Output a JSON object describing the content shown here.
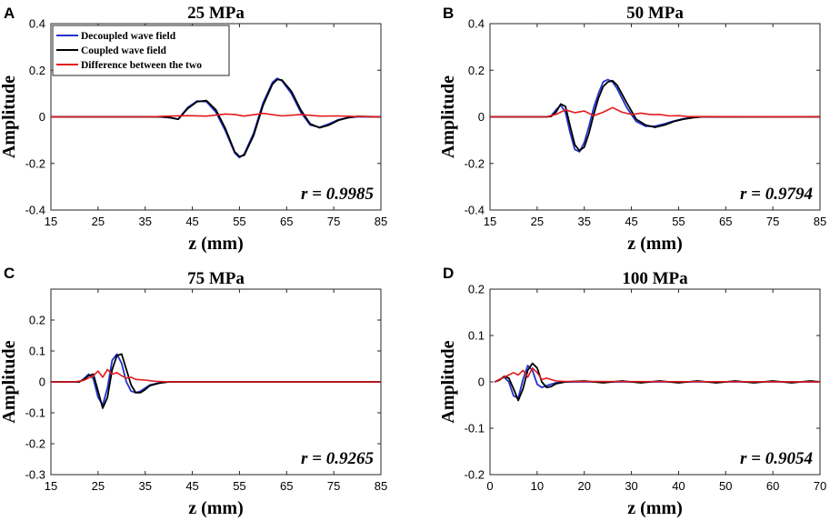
{
  "chart_data": [
    {
      "type": "line",
      "panel_label": "A",
      "title": "25 MPa",
      "xlabel": "z (mm)",
      "ylabel": "Amplitude",
      "xlim": [
        15,
        85
      ],
      "ylim": [
        -0.4,
        0.4
      ],
      "xticks": [
        15,
        25,
        35,
        45,
        55,
        65,
        75,
        85
      ],
      "yticks": [
        -0.4,
        -0.2,
        0,
        0.2,
        0.4
      ],
      "annotation": "r = 0.9985",
      "legend": {
        "position": "top-left",
        "entries": [
          "Decoupled wave field",
          "Coupled wave field",
          "Difference between the two"
        ]
      },
      "series": [
        {
          "name": "Decoupled wave field",
          "color": "#2233cc",
          "x": [
            15,
            38,
            40,
            42,
            44,
            46,
            48,
            50,
            52,
            54,
            55,
            56,
            58,
            60,
            62,
            63,
            64,
            66,
            68,
            70,
            72,
            74,
            76,
            78,
            80,
            85
          ],
          "y": [
            0,
            0,
            -0.003,
            -0.01,
            0.04,
            0.068,
            0.065,
            0.02,
            -0.06,
            -0.155,
            -0.175,
            -0.16,
            -0.07,
            0.06,
            0.148,
            0.165,
            0.155,
            0.1,
            0.02,
            -0.035,
            -0.045,
            -0.03,
            -0.012,
            -0.003,
            0,
            0
          ]
        },
        {
          "name": "Coupled wave field",
          "color": "#000000",
          "x": [
            15,
            38,
            40,
            42,
            44,
            46,
            48,
            50,
            52,
            54,
            55,
            56,
            58,
            60,
            62,
            63,
            64,
            66,
            68,
            70,
            72,
            74,
            76,
            78,
            80,
            85
          ],
          "y": [
            0,
            0,
            -0.002,
            -0.01,
            0.035,
            0.065,
            0.07,
            0.03,
            -0.05,
            -0.15,
            -0.17,
            -0.165,
            -0.08,
            0.05,
            0.14,
            0.16,
            0.158,
            0.11,
            0.03,
            -0.03,
            -0.047,
            -0.035,
            -0.015,
            -0.004,
            0.002,
            0
          ]
        },
        {
          "name": "Difference between the two",
          "color": "#e31a1c",
          "x": [
            15,
            36,
            40,
            44,
            48,
            52,
            54,
            56,
            60,
            64,
            68,
            72,
            76,
            80,
            85
          ],
          "y": [
            0,
            0,
            0.003,
            0.005,
            0.003,
            0.012,
            0.01,
            0.003,
            0.015,
            0.004,
            0.01,
            0.003,
            0.004,
            0.001,
            0
          ]
        }
      ]
    },
    {
      "type": "line",
      "panel_label": "B",
      "title": "50 MPa",
      "xlabel": "z (mm)",
      "ylabel": "Amplitude",
      "xlim": [
        15,
        85
      ],
      "ylim": [
        -0.4,
        0.4
      ],
      "xticks": [
        15,
        25,
        35,
        45,
        55,
        65,
        75,
        85
      ],
      "yticks": [
        -0.4,
        -0.2,
        0,
        0.2,
        0.4
      ],
      "annotation": "r = 0.9794",
      "series": [
        {
          "name": "Decoupled wave field",
          "color": "#2233cc",
          "x": [
            15,
            27,
            28,
            29,
            30,
            31,
            32,
            33,
            34,
            35,
            36,
            37,
            38,
            39,
            40,
            41,
            42,
            44,
            46,
            48,
            50,
            52,
            54,
            56,
            58,
            60,
            85
          ],
          "y": [
            0,
            0,
            0.005,
            0.03,
            0.05,
            0.02,
            -0.07,
            -0.14,
            -0.15,
            -0.11,
            -0.04,
            0.04,
            0.1,
            0.15,
            0.16,
            0.15,
            0.12,
            0.04,
            -0.02,
            -0.04,
            -0.04,
            -0.03,
            -0.018,
            -0.008,
            -0.002,
            0,
            0
          ]
        },
        {
          "name": "Coupled wave field",
          "color": "#000000",
          "x": [
            15,
            27,
            28,
            29,
            30,
            31,
            32,
            33,
            34,
            35,
            36,
            37,
            38,
            39,
            40,
            41,
            42,
            44,
            46,
            48,
            50,
            52,
            54,
            56,
            58,
            60,
            85
          ],
          "y": [
            0,
            0,
            0.002,
            0.02,
            0.055,
            0.045,
            -0.04,
            -0.12,
            -0.145,
            -0.13,
            -0.07,
            0.01,
            0.08,
            0.13,
            0.15,
            0.155,
            0.135,
            0.06,
            -0.01,
            -0.035,
            -0.045,
            -0.035,
            -0.02,
            -0.01,
            -0.004,
            0,
            0
          ]
        },
        {
          "name": "Difference between the two",
          "color": "#e31a1c",
          "x": [
            15,
            27,
            29,
            31,
            33,
            35,
            37,
            39,
            41,
            43,
            45,
            47,
            49,
            51,
            53,
            55,
            57,
            85
          ],
          "y": [
            0,
            0,
            0.01,
            0.03,
            0.018,
            0.025,
            0.005,
            0.02,
            0.04,
            0.02,
            0.01,
            0.016,
            0.01,
            0.01,
            0.004,
            0.005,
            0.001,
            0
          ]
        }
      ]
    },
    {
      "type": "line",
      "panel_label": "C",
      "title": "75 MPa",
      "xlabel": "z (mm)",
      "ylabel": "Amplitude",
      "xlim": [
        15,
        85
      ],
      "ylim": [
        -0.3,
        0.3
      ],
      "xticks": [
        15,
        25,
        35,
        45,
        55,
        65,
        75,
        85
      ],
      "yticks": [
        -0.3,
        -0.2,
        -0.1,
        0,
        0.1,
        0.2
      ],
      "annotation": "r = 0.9265",
      "series": [
        {
          "name": "Decoupled wave field",
          "color": "#2233cc",
          "x": [
            15,
            21,
            22,
            23,
            24,
            25,
            26,
            27,
            28,
            29,
            30,
            31,
            32,
            33,
            34,
            35,
            36,
            38,
            40,
            85
          ],
          "y": [
            0,
            0,
            0.01,
            0.025,
            0.01,
            -0.05,
            -0.075,
            -0.02,
            0.07,
            0.09,
            0.06,
            0.0,
            -0.03,
            -0.035,
            -0.03,
            -0.02,
            -0.01,
            -0.003,
            0,
            0
          ]
        },
        {
          "name": "Coupled wave field",
          "color": "#000000",
          "x": [
            15,
            21,
            22,
            23,
            24,
            25,
            26,
            27,
            28,
            29,
            30,
            31,
            32,
            33,
            34,
            35,
            36,
            38,
            40,
            85
          ],
          "y": [
            0,
            0,
            0.008,
            0.02,
            0.025,
            -0.03,
            -0.085,
            -0.05,
            0.04,
            0.085,
            0.09,
            0.04,
            -0.01,
            -0.035,
            -0.035,
            -0.025,
            -0.012,
            -0.004,
            0,
            0
          ]
        },
        {
          "name": "Difference between the two",
          "color": "#e31a1c",
          "x": [
            15,
            20,
            22,
            24,
            25,
            26,
            27,
            28,
            29,
            30,
            31,
            32,
            33,
            35,
            37,
            40,
            85
          ],
          "y": [
            0,
            0,
            0.005,
            0.02,
            0.035,
            0.015,
            0.04,
            0.025,
            0.03,
            0.02,
            0.012,
            0.015,
            0.008,
            0.006,
            0.002,
            0,
            0
          ]
        }
      ]
    },
    {
      "type": "line",
      "panel_label": "D",
      "title": "100 MPa",
      "xlabel": "z (mm)",
      "ylabel": "Amplitude",
      "xlim": [
        0,
        70
      ],
      "ylim": [
        -0.2,
        0.2
      ],
      "xticks": [
        0,
        10,
        20,
        30,
        40,
        50,
        60,
        70
      ],
      "yticks": [
        -0.2,
        -0.1,
        0,
        0.1,
        0.2
      ],
      "annotation": "r = 0.9054",
      "series": [
        {
          "name": "Decoupled wave field",
          "color": "#2233cc",
          "x": [
            1,
            2,
            3,
            4,
            5,
            6,
            7,
            8,
            9,
            10,
            11,
            12,
            14,
            16,
            70
          ],
          "y": [
            0,
            0.005,
            0.01,
            0.0,
            -0.03,
            -0.035,
            0.005,
            0.035,
            0.025,
            -0.005,
            -0.012,
            -0.008,
            -0.002,
            0,
            0
          ]
        },
        {
          "name": "Coupled wave field",
          "color": "#000000",
          "x": [
            1,
            2,
            3,
            4,
            5,
            6,
            7,
            8,
            9,
            10,
            11,
            12,
            13,
            14,
            16,
            20,
            24,
            28,
            32,
            36,
            40,
            44,
            48,
            52,
            56,
            60,
            64,
            68,
            70
          ],
          "y": [
            0,
            0.004,
            0.012,
            0.008,
            -0.015,
            -0.04,
            -0.015,
            0.025,
            0.04,
            0.03,
            0.0,
            -0.012,
            -0.01,
            -0.004,
            0,
            0.002,
            -0.002,
            0.002,
            -0.002,
            0.002,
            -0.002,
            0.002,
            -0.002,
            0.002,
            -0.002,
            0.002,
            -0.002,
            0.002,
            0
          ]
        },
        {
          "name": "Difference between the two",
          "color": "#e31a1c",
          "x": [
            1,
            2,
            3,
            4,
            5,
            6,
            7,
            8,
            9,
            10,
            11,
            12,
            14,
            16,
            70
          ],
          "y": [
            0,
            0.005,
            0.01,
            0.015,
            0.02,
            0.015,
            0.025,
            0.01,
            0.03,
            0.02,
            0.005,
            0.008,
            0.002,
            0.001,
            0
          ]
        }
      ]
    }
  ]
}
